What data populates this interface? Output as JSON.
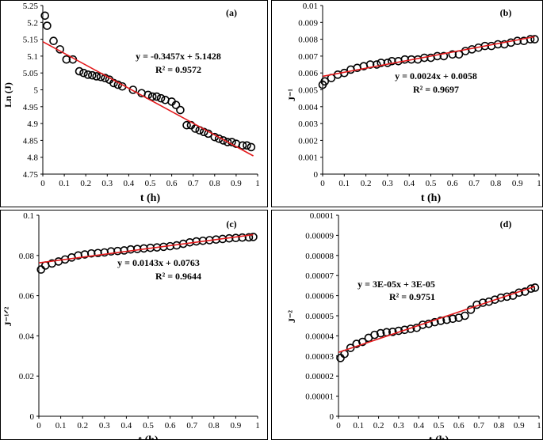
{
  "colors": {
    "fit": "#e31a1c",
    "marker": "#000000"
  },
  "chart_data": [
    {
      "type": "scatter",
      "panel_label": "(a)",
      "xlabel": "t (h)",
      "ylabel": "Ln (J)",
      "xlim": [
        0,
        1
      ],
      "ylim": [
        4.75,
        5.25
      ],
      "xticks": [
        "0",
        "0.1",
        "0.2",
        "0.3",
        "0.4",
        "0.5",
        "0.6",
        "0.7",
        "0.8",
        "0.9",
        "1"
      ],
      "yticks": [
        "4.75",
        "4.8",
        "4.85",
        "4.9",
        "4.95",
        "5",
        "5.05",
        "5.1",
        "5.15",
        "5.2",
        "5.25"
      ],
      "trendline": {
        "slope": -0.3457,
        "intercept": 5.1428
      },
      "equation": "y = -0.3457x + 5.1428",
      "r2": "R² = 0.9572",
      "x": [
        0.01,
        0.02,
        0.05,
        0.08,
        0.11,
        0.14,
        0.17,
        0.19,
        0.21,
        0.23,
        0.25,
        0.27,
        0.29,
        0.31,
        0.33,
        0.35,
        0.37,
        0.42,
        0.46,
        0.49,
        0.51,
        0.53,
        0.55,
        0.57,
        0.6,
        0.62,
        0.64,
        0.67,
        0.69,
        0.71,
        0.73,
        0.75,
        0.77,
        0.8,
        0.82,
        0.84,
        0.86,
        0.88,
        0.9,
        0.93,
        0.95,
        0.97
      ],
      "y": [
        5.22,
        5.19,
        5.145,
        5.12,
        5.09,
        5.09,
        5.055,
        5.05,
        5.045,
        5.043,
        5.04,
        5.038,
        5.035,
        5.03,
        5.02,
        5.015,
        5.01,
        5.0,
        4.99,
        4.985,
        4.98,
        4.98,
        4.975,
        4.97,
        4.965,
        4.955,
        4.94,
        4.895,
        4.895,
        4.885,
        4.88,
        4.875,
        4.87,
        4.86,
        4.855,
        4.85,
        4.845,
        4.845,
        4.84,
        4.835,
        4.835,
        4.83
      ]
    },
    {
      "type": "scatter",
      "panel_label": "(b)",
      "xlabel": "t (h)",
      "ylabel": "J⁻¹",
      "xlim": [
        0,
        1
      ],
      "ylim": [
        0,
        0.01
      ],
      "xticks": [
        "0",
        "0.1",
        "0.2",
        "0.3",
        "0.4",
        "0.5",
        "0.6",
        "0.7",
        "0.8",
        "0.9",
        "1"
      ],
      "yticks": [
        "0",
        "0.001",
        "0.002",
        "0.003",
        "0.004",
        "0.005",
        "0.006",
        "0.007",
        "0.008",
        "0.009",
        "0.01"
      ],
      "trendline": {
        "slope": 0.0024,
        "intercept": 0.0058
      },
      "equation": "y = 0.0024x + 0.0058",
      "r2": "R² = 0.9697",
      "x": [
        0.0,
        0.01,
        0.04,
        0.07,
        0.1,
        0.13,
        0.16,
        0.19,
        0.22,
        0.25,
        0.27,
        0.3,
        0.32,
        0.35,
        0.38,
        0.41,
        0.44,
        0.47,
        0.5,
        0.53,
        0.56,
        0.6,
        0.63,
        0.66,
        0.69,
        0.72,
        0.75,
        0.78,
        0.81,
        0.84,
        0.87,
        0.9,
        0.93,
        0.96,
        0.98
      ],
      "y": [
        0.0053,
        0.0055,
        0.0057,
        0.0059,
        0.006,
        0.0062,
        0.0063,
        0.0064,
        0.0065,
        0.0065,
        0.0066,
        0.0066,
        0.0067,
        0.0067,
        0.0068,
        0.0068,
        0.0068,
        0.0069,
        0.0069,
        0.007,
        0.007,
        0.0071,
        0.0071,
        0.0073,
        0.0074,
        0.0075,
        0.0076,
        0.0076,
        0.0077,
        0.0077,
        0.0078,
        0.0079,
        0.0079,
        0.008,
        0.008
      ]
    },
    {
      "type": "scatter",
      "panel_label": "(c)",
      "xlabel": "t (h)",
      "ylabel": "J⁻¹ᐟ²",
      "xlim": [
        0,
        1
      ],
      "ylim": [
        0,
        0.1
      ],
      "xticks": [
        "0",
        "0.1",
        "0.2",
        "0.3",
        "0.4",
        "0.5",
        "0.6",
        "0.7",
        "0.8",
        "0.9",
        "1"
      ],
      "yticks": [
        "0",
        "0.02",
        "0.04",
        "0.06",
        "0.08",
        "0.1"
      ],
      "trendline": {
        "slope": 0.0143,
        "intercept": 0.0763
      },
      "equation": "y = 0.0143x + 0.0763",
      "r2": "R² = 0.9644",
      "x": [
        0.01,
        0.03,
        0.06,
        0.09,
        0.12,
        0.15,
        0.18,
        0.21,
        0.24,
        0.27,
        0.3,
        0.33,
        0.36,
        0.39,
        0.42,
        0.45,
        0.48,
        0.51,
        0.54,
        0.57,
        0.6,
        0.63,
        0.66,
        0.69,
        0.72,
        0.75,
        0.78,
        0.81,
        0.84,
        0.87,
        0.9,
        0.93,
        0.96,
        0.98
      ],
      "y": [
        0.073,
        0.075,
        0.076,
        0.077,
        0.078,
        0.079,
        0.08,
        0.0805,
        0.081,
        0.0812,
        0.0815,
        0.082,
        0.0822,
        0.0825,
        0.083,
        0.0832,
        0.0835,
        0.0838,
        0.084,
        0.0843,
        0.0846,
        0.085,
        0.0858,
        0.0865,
        0.087,
        0.0873,
        0.0876,
        0.0879,
        0.0882,
        0.0885,
        0.0887,
        0.0889,
        0.089,
        0.0892
      ]
    },
    {
      "type": "scatter",
      "panel_label": "(d)",
      "xlabel": "t (h)",
      "ylabel": "J⁻²",
      "xlim": [
        0,
        1
      ],
      "ylim": [
        0,
        0.0001
      ],
      "xticks": [
        "0",
        "0.1",
        "0.2",
        "0.3",
        "0.4",
        "0.5",
        "0.6",
        "0.7",
        "0.8",
        "0.9",
        "1"
      ],
      "yticks": [
        "0",
        "0.00001",
        "0.00002",
        "0.00003",
        "0.00004",
        "0.00005",
        "0.00006",
        "0.00007",
        "0.00008",
        "0.00009",
        "0.0001"
      ],
      "trendline": {
        "slope": 3.35e-05,
        "intercept": 3.18e-05
      },
      "equation": "y = 3E-05x + 3E-05",
      "r2": "R² = 0.9751",
      "x": [
        0.01,
        0.03,
        0.06,
        0.09,
        0.12,
        0.15,
        0.18,
        0.21,
        0.24,
        0.27,
        0.3,
        0.33,
        0.36,
        0.39,
        0.42,
        0.45,
        0.48,
        0.51,
        0.54,
        0.57,
        0.6,
        0.63,
        0.66,
        0.69,
        0.72,
        0.75,
        0.78,
        0.81,
        0.84,
        0.87,
        0.9,
        0.93,
        0.96,
        0.98
      ],
      "y": [
        2.9e-05,
        3.1e-05,
        3.4e-05,
        3.6e-05,
        3.7e-05,
        3.9e-05,
        4.05e-05,
        4.13e-05,
        4.18e-05,
        4.2e-05,
        4.25e-05,
        4.3e-05,
        4.35e-05,
        4.4e-05,
        4.55e-05,
        4.6e-05,
        4.68e-05,
        4.75e-05,
        4.8e-05,
        4.85e-05,
        4.9e-05,
        5e-05,
        5.3e-05,
        5.55e-05,
        5.65e-05,
        5.7e-05,
        5.8e-05,
        5.9e-05,
        5.95e-05,
        6e-05,
        6.15e-05,
        6.2e-05,
        6.35e-05,
        6.4e-05
      ]
    }
  ]
}
